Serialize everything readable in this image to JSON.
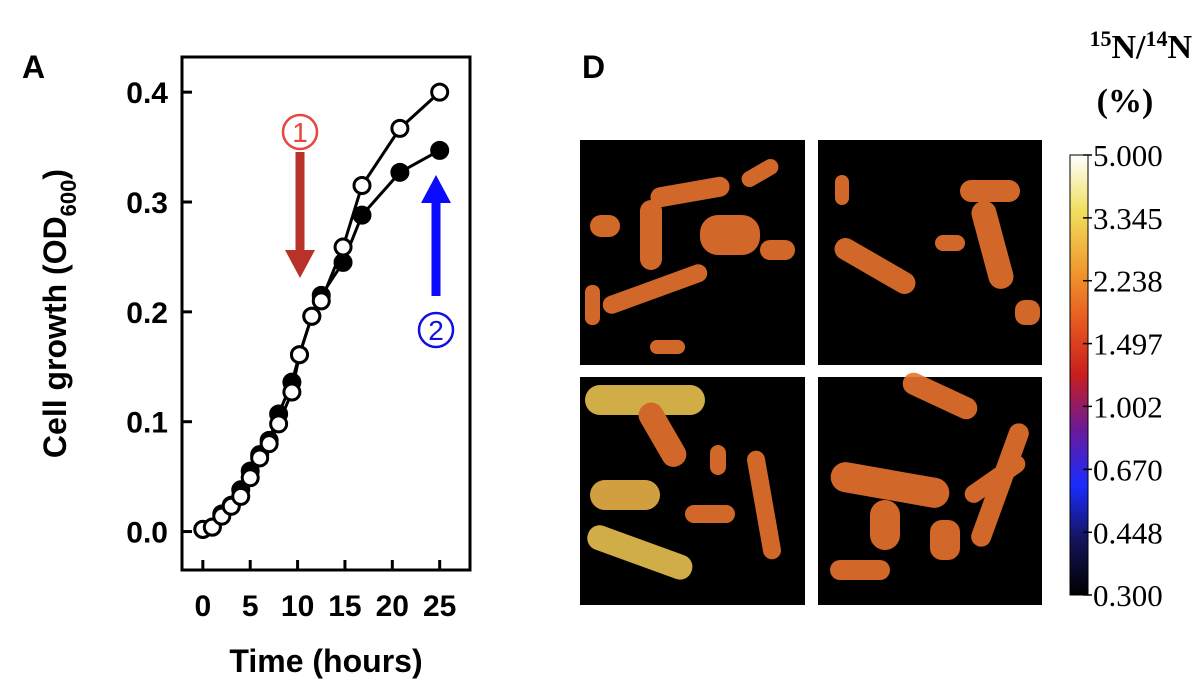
{
  "chart_data": [
    {
      "type": "line",
      "label": "A",
      "xlabel": "Time (hours)",
      "ylabel": {
        "text": "Cell growth (OD",
        "subscript": "600",
        "suffix": ")"
      },
      "x": [
        0,
        1,
        2,
        3,
        4,
        5,
        6,
        7,
        8,
        9.4,
        10.2,
        11.5,
        12.5,
        14.8,
        16.8,
        20.8,
        25
      ],
      "series": [
        {
          "color": "#000000",
          "marker_fill": "#000000",
          "values": [
            0.002,
            0.004,
            0.016,
            0.024,
            0.038,
            0.055,
            0.07,
            0.083,
            0.107,
            0.136,
            0.161,
            0.196,
            0.215,
            0.245,
            0.288,
            0.327,
            0.347
          ]
        },
        {
          "color": "#000000",
          "marker_fill": "#ffffff",
          "values": [
            0.002,
            0.004,
            0.014,
            0.023,
            0.032,
            0.049,
            0.067,
            0.08,
            0.098,
            0.127,
            0.161,
            0.196,
            0.21,
            0.259,
            0.315,
            0.367,
            0.4
          ]
        }
      ],
      "xlim": [
        -2.2,
        28.2
      ],
      "ylim": [
        -0.035,
        0.432
      ],
      "xticks": [
        0,
        5,
        10,
        15,
        20,
        25
      ],
      "yticks": [
        {
          "value": 0,
          "label": "0.0"
        },
        0.1,
        0.2,
        0.3,
        0.4
      ],
      "annotations": [
        {
          "text": "1",
          "color": "#e8453c",
          "arrow_color": "#b8322a"
        },
        {
          "text": "2",
          "color": "#1010e0",
          "arrow_color": "#0a0aff"
        }
      ]
    },
    {
      "type": "colorbar",
      "label": "D",
      "title": {
        "sup1": "15",
        "base1": "N/",
        "sup2": "14",
        "base2": "N",
        "line2": "(%)"
      },
      "log_scale": true,
      "clim": [
        0.3,
        5
      ],
      "colormap": [
        "#000000",
        "#14145a",
        "#1a2cff",
        "#6a1a9a",
        "#c81e1e",
        "#e85a20",
        "#f0a030",
        "#f0e060",
        "#ffffff"
      ],
      "ticks": [
        {
          "value": 5,
          "label": "5.000"
        },
        3.345,
        2.238,
        1.497,
        {
          "value": 1.002,
          "label": "1.002"
        },
        {
          "value": 0.67,
          "label": "0.670"
        },
        0.448,
        {
          "value": 0.3,
          "label": "0.300"
        }
      ]
    }
  ]
}
